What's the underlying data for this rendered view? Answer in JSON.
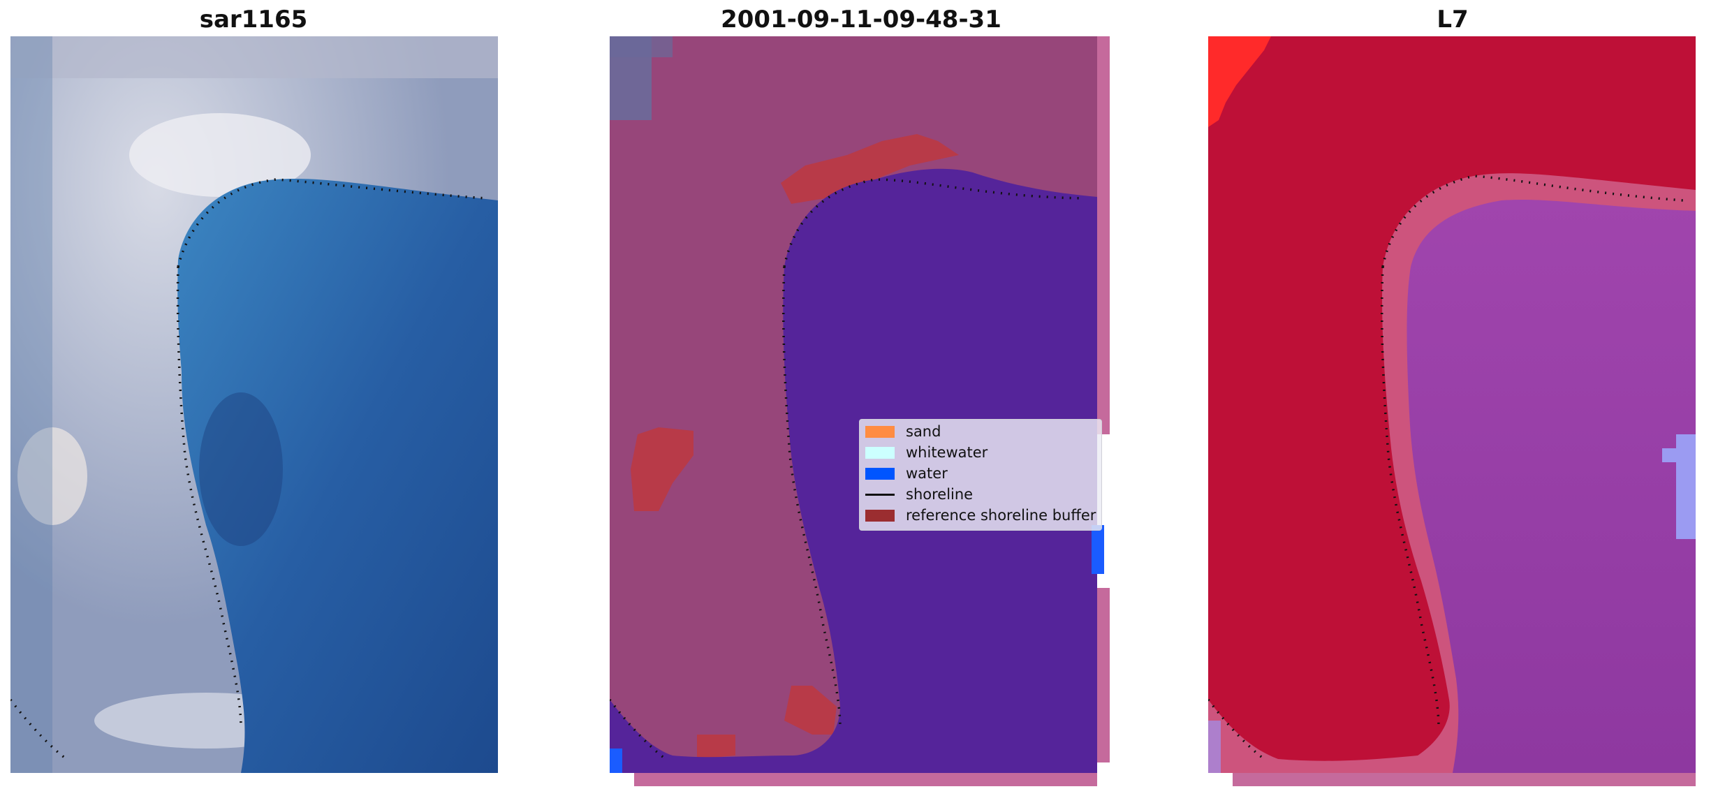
{
  "panels": [
    {
      "title": "sar1165",
      "kind": "rgb"
    },
    {
      "title": "2001-09-11-09-48-31",
      "kind": "classified"
    },
    {
      "title": "L7",
      "kind": "index"
    }
  ],
  "legend": {
    "items": [
      {
        "label": "sand",
        "color": "#ff8c42",
        "type": "patch"
      },
      {
        "label": "whitewater",
        "color": "#ccffff",
        "type": "patch"
      },
      {
        "label": "water",
        "color": "#0055ff",
        "type": "patch"
      },
      {
        "label": "shoreline",
        "color": "#000000",
        "type": "line"
      },
      {
        "label": "reference shoreline buffer",
        "color": "#9b2d30",
        "type": "patch"
      }
    ]
  },
  "colors": {
    "rgb_land": "#9aa6c2",
    "rgb_water": "#2f5fa0",
    "class_land": "#9b4a7e",
    "class_water": "#55249a",
    "class_buffer": "#b83a48",
    "class_water_blue": "#1a5cff",
    "index_land": "#c41038",
    "index_water": "#9b3ca6",
    "index_bright": "#ff2a2a",
    "shoreline": "#111111"
  }
}
